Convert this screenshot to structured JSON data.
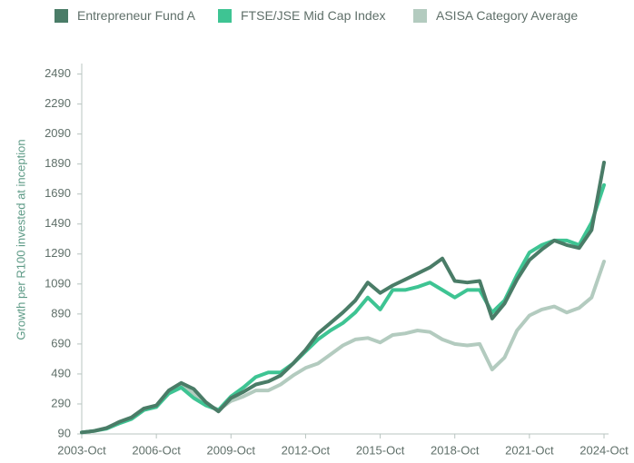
{
  "chart_data": {
    "type": "line",
    "y_label": "Growth per R100 invested at inception",
    "x": [
      "2003-Oct",
      "2004-Apr",
      "2004-Oct",
      "2005-Apr",
      "2005-Oct",
      "2006-Apr",
      "2006-Oct",
      "2007-Apr",
      "2007-Oct",
      "2008-Apr",
      "2008-Oct",
      "2009-Apr",
      "2009-Oct",
      "2010-Apr",
      "2010-Oct",
      "2011-Apr",
      "2011-Oct",
      "2012-Apr",
      "2012-Oct",
      "2013-Apr",
      "2013-Oct",
      "2014-Apr",
      "2014-Oct",
      "2015-Apr",
      "2015-Oct",
      "2016-Apr",
      "2016-Oct",
      "2017-Apr",
      "2017-Oct",
      "2018-Apr",
      "2018-Oct",
      "2019-Apr",
      "2019-Oct",
      "2020-Apr",
      "2020-Oct",
      "2021-Apr",
      "2021-Oct",
      "2022-Apr",
      "2022-Oct",
      "2023-Apr",
      "2023-Oct",
      "2024-Apr",
      "2024-Oct"
    ],
    "xticks": [
      "2003-Oct",
      "2006-Oct",
      "2009-Oct",
      "2012-Oct",
      "2015-Oct",
      "2018-Oct",
      "2021-Oct",
      "2024-Oct"
    ],
    "series": [
      {
        "name": "Entrepreneur Fund A",
        "color": "#4a7c67",
        "values": [
          100,
          110,
          130,
          170,
          200,
          260,
          280,
          380,
          430,
          390,
          300,
          240,
          330,
          370,
          420,
          440,
          480,
          560,
          650,
          760,
          830,
          900,
          980,
          1100,
          1030,
          1080,
          1120,
          1160,
          1200,
          1260,
          1110,
          1100,
          1110,
          860,
          960,
          1120,
          1250,
          1320,
          1380,
          1350,
          1330,
          1450,
          1900
        ]
      },
      {
        "name": "FTSE/JSE Mid Cap Index",
        "color": "#3ec493",
        "values": [
          100,
          110,
          125,
          160,
          190,
          250,
          270,
          360,
          400,
          330,
          280,
          250,
          340,
          400,
          470,
          500,
          500,
          560,
          640,
          720,
          780,
          830,
          900,
          1000,
          920,
          1050,
          1050,
          1070,
          1100,
          1050,
          1000,
          1050,
          1050,
          900,
          980,
          1150,
          1300,
          1350,
          1380,
          1380,
          1350,
          1500,
          1750
        ]
      },
      {
        "name": "ASISA Category Average",
        "color": "#b3cbbf",
        "values": [
          100,
          110,
          130,
          160,
          190,
          250,
          270,
          370,
          410,
          360,
          290,
          250,
          310,
          340,
          380,
          380,
          420,
          480,
          530,
          560,
          620,
          680,
          720,
          730,
          700,
          750,
          760,
          780,
          770,
          720,
          690,
          680,
          690,
          520,
          600,
          780,
          880,
          920,
          940,
          900,
          930,
          1000,
          1240
        ]
      }
    ],
    "ylim": [
      90,
      2560
    ],
    "yticks": [
      90,
      290,
      490,
      690,
      890,
      1090,
      1290,
      1490,
      1690,
      1890,
      2090,
      2290,
      2490
    ]
  }
}
